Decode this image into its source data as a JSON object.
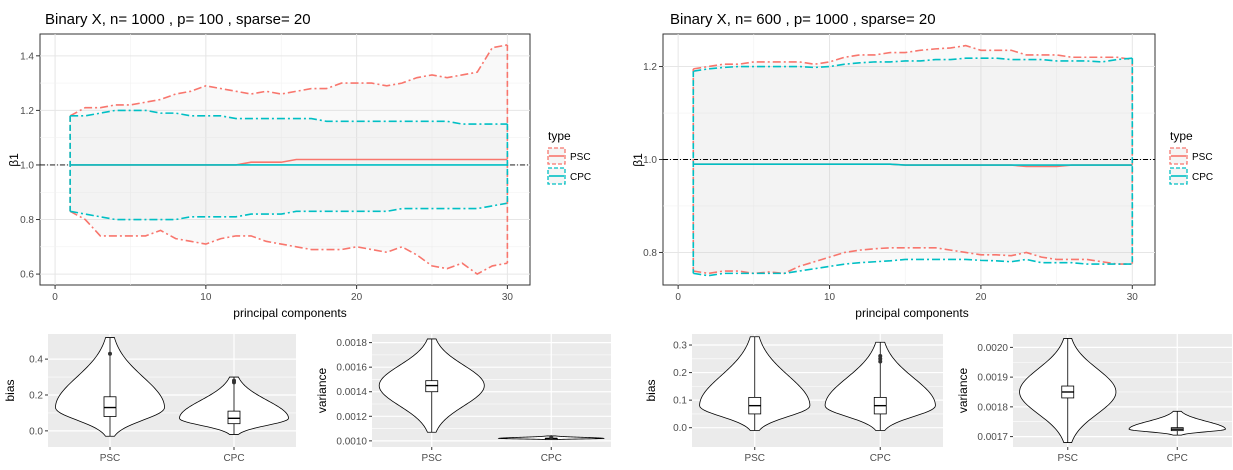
{
  "panels_top": [
    {
      "title": "Binary X, n= 1000 , p= 100 , sparse= 20",
      "xlabel": "principal components",
      "ylabel": "β1",
      "xlim": [
        -1,
        31.5
      ],
      "ylim": [
        0.56,
        1.48
      ],
      "xticks": [
        0,
        10,
        20,
        30
      ],
      "yticks": [
        0.6,
        0.8,
        1.0,
        1.2,
        1.4
      ],
      "ytick_labels": [
        "0.6",
        "0.8",
        "1.0",
        "1.2",
        "1.4"
      ],
      "reference_line": 1.0,
      "legend": {
        "title": "type",
        "items": [
          {
            "label": "PSC",
            "color": "#F8766D"
          },
          {
            "label": "CPC",
            "color": "#00BFC4"
          }
        ]
      }
    },
    {
      "title": "Binary X, n= 600 , p= 1000 , sparse= 20",
      "xlabel": "principal components",
      "ylabel": "β1",
      "xlim": [
        -1,
        31.5
      ],
      "ylim": [
        0.73,
        1.27
      ],
      "xticks": [
        0,
        10,
        20,
        30
      ],
      "yticks": [
        0.8,
        1.0,
        1.2
      ],
      "ytick_labels": [
        "0.8",
        "1.0",
        "1.2"
      ],
      "reference_line": 1.0,
      "legend": {
        "title": "type",
        "items": [
          {
            "label": "PSC",
            "color": "#F8766D"
          },
          {
            "label": "CPC",
            "color": "#00BFC4"
          }
        ]
      }
    }
  ],
  "panels_bottom": [
    {
      "ylabel": "bias",
      "categories": [
        "PSC",
        "CPC"
      ],
      "ylim": [
        -0.09,
        0.54
      ],
      "yticks": [
        0.0,
        0.2,
        0.4
      ],
      "ytick_labels": [
        "0.0",
        "0.2",
        "0.4"
      ]
    },
    {
      "ylabel": "variance",
      "categories": [
        "PSC",
        "CPC"
      ],
      "ylim": [
        0.00095,
        0.00187
      ],
      "yticks": [
        0.001,
        0.0012,
        0.0014,
        0.0016,
        0.0018
      ],
      "ytick_labels": [
        "0.0010",
        "0.0012",
        "0.0014",
        "0.0016",
        "0.0018"
      ]
    },
    {
      "ylabel": "bias",
      "categories": [
        "PSC",
        "CPC"
      ],
      "ylim": [
        -0.07,
        0.34
      ],
      "yticks": [
        0.0,
        0.1,
        0.2,
        0.3
      ],
      "ytick_labels": [
        "0.0",
        "0.1",
        "0.2",
        "0.3"
      ]
    },
    {
      "ylabel": "variance",
      "categories": [
        "PSC",
        "CPC"
      ],
      "ylim": [
        0.001665,
        0.002045
      ],
      "yticks": [
        0.0017,
        0.0018,
        0.0019,
        0.002
      ],
      "ytick_labels": [
        "0.0017",
        "0.0018",
        "0.0019",
        "0.0020"
      ]
    }
  ],
  "chart_data": [
    {
      "type": "line",
      "title": "Binary X, n= 1000 , p= 100 , sparse= 20",
      "xlabel": "principal components",
      "ylabel": "β1",
      "x": [
        1,
        2,
        3,
        4,
        5,
        6,
        7,
        8,
        9,
        10,
        11,
        12,
        13,
        14,
        15,
        16,
        17,
        18,
        19,
        20,
        21,
        22,
        23,
        24,
        25,
        26,
        27,
        28,
        29,
        30
      ],
      "series": [
        {
          "name": "PSC",
          "stat": "upper",
          "values": [
            1.18,
            1.21,
            1.21,
            1.22,
            1.22,
            1.23,
            1.24,
            1.26,
            1.27,
            1.29,
            1.28,
            1.27,
            1.26,
            1.27,
            1.26,
            1.27,
            1.28,
            1.28,
            1.3,
            1.3,
            1.3,
            1.29,
            1.3,
            1.32,
            1.33,
            1.32,
            1.33,
            1.34,
            1.43,
            1.44
          ]
        },
        {
          "name": "PSC",
          "stat": "mean",
          "values": [
            1.0,
            1.0,
            1.0,
            1.0,
            1.0,
            1.0,
            1.0,
            1.0,
            1.0,
            1.0,
            1.0,
            1.0,
            1.01,
            1.01,
            1.01,
            1.02,
            1.02,
            1.02,
            1.02,
            1.02,
            1.02,
            1.02,
            1.02,
            1.02,
            1.02,
            1.02,
            1.02,
            1.02,
            1.02,
            1.02
          ]
        },
        {
          "name": "PSC",
          "stat": "lower",
          "values": [
            0.83,
            0.8,
            0.74,
            0.74,
            0.74,
            0.74,
            0.76,
            0.73,
            0.72,
            0.71,
            0.73,
            0.74,
            0.74,
            0.72,
            0.71,
            0.7,
            0.69,
            0.69,
            0.69,
            0.7,
            0.69,
            0.68,
            0.7,
            0.67,
            0.63,
            0.62,
            0.64,
            0.6,
            0.63,
            0.64
          ]
        },
        {
          "name": "CPC",
          "stat": "upper",
          "values": [
            1.18,
            1.18,
            1.19,
            1.2,
            1.2,
            1.2,
            1.19,
            1.19,
            1.18,
            1.18,
            1.18,
            1.17,
            1.17,
            1.17,
            1.17,
            1.17,
            1.17,
            1.16,
            1.16,
            1.16,
            1.16,
            1.16,
            1.16,
            1.16,
            1.16,
            1.16,
            1.15,
            1.15,
            1.15,
            1.15
          ]
        },
        {
          "name": "CPC",
          "stat": "mean",
          "values": [
            1.0,
            1.0,
            1.0,
            1.0,
            1.0,
            1.0,
            1.0,
            1.0,
            1.0,
            1.0,
            1.0,
            1.0,
            1.0,
            1.0,
            1.0,
            1.0,
            1.0,
            1.0,
            1.0,
            1.0,
            1.0,
            1.0,
            1.0,
            1.0,
            1.0,
            1.0,
            1.0,
            1.0,
            1.0,
            1.0
          ]
        },
        {
          "name": "CPC",
          "stat": "lower",
          "values": [
            0.83,
            0.82,
            0.81,
            0.8,
            0.8,
            0.8,
            0.8,
            0.8,
            0.81,
            0.81,
            0.81,
            0.81,
            0.82,
            0.82,
            0.82,
            0.83,
            0.83,
            0.83,
            0.83,
            0.83,
            0.83,
            0.83,
            0.84,
            0.84,
            0.84,
            0.84,
            0.84,
            0.84,
            0.85,
            0.86
          ]
        }
      ],
      "legend_title": "type",
      "legend": [
        "PSC",
        "CPC"
      ],
      "colors": {
        "PSC": "#F8766D",
        "CPC": "#00BFC4"
      },
      "ylim": [
        0.56,
        1.48
      ],
      "grid": true,
      "legend_position": "right"
    },
    {
      "type": "line",
      "title": "Binary X, n= 600 , p= 1000 , sparse= 20",
      "xlabel": "principal components",
      "ylabel": "β1",
      "x": [
        1,
        2,
        3,
        4,
        5,
        6,
        7,
        8,
        9,
        10,
        11,
        12,
        13,
        14,
        15,
        16,
        17,
        18,
        19,
        20,
        21,
        22,
        23,
        24,
        25,
        26,
        27,
        28,
        29,
        30
      ],
      "series": [
        {
          "name": "PSC",
          "stat": "upper",
          "values": [
            1.195,
            1.2,
            1.205,
            1.205,
            1.21,
            1.21,
            1.21,
            1.21,
            1.205,
            1.21,
            1.22,
            1.225,
            1.225,
            1.23,
            1.23,
            1.235,
            1.238,
            1.24,
            1.245,
            1.235,
            1.235,
            1.235,
            1.225,
            1.225,
            1.225,
            1.22,
            1.22,
            1.22,
            1.22,
            1.215
          ]
        },
        {
          "name": "PSC",
          "stat": "mean",
          "values": [
            0.99,
            0.99,
            0.99,
            0.99,
            0.99,
            0.99,
            0.99,
            0.99,
            0.99,
            0.99,
            0.99,
            0.99,
            0.99,
            0.99,
            0.988,
            0.988,
            0.988,
            0.988,
            0.988,
            0.988,
            0.988,
            0.988,
            0.985,
            0.985,
            0.985,
            0.988,
            0.988,
            0.988,
            0.988,
            0.988
          ]
        },
        {
          "name": "PSC",
          "stat": "lower",
          "values": [
            0.76,
            0.755,
            0.76,
            0.76,
            0.755,
            0.758,
            0.755,
            0.77,
            0.78,
            0.79,
            0.8,
            0.805,
            0.808,
            0.81,
            0.81,
            0.81,
            0.81,
            0.805,
            0.8,
            0.795,
            0.795,
            0.793,
            0.8,
            0.79,
            0.785,
            0.785,
            0.785,
            0.78,
            0.775,
            0.775
          ]
        },
        {
          "name": "CPC",
          "stat": "upper",
          "values": [
            1.19,
            1.195,
            1.198,
            1.2,
            1.2,
            1.2,
            1.2,
            1.2,
            1.198,
            1.2,
            1.205,
            1.208,
            1.21,
            1.21,
            1.212,
            1.212,
            1.215,
            1.215,
            1.218,
            1.218,
            1.218,
            1.215,
            1.215,
            1.215,
            1.212,
            1.212,
            1.212,
            1.21,
            1.215,
            1.218
          ]
        },
        {
          "name": "CPC",
          "stat": "mean",
          "values": [
            0.99,
            0.99,
            0.99,
            0.99,
            0.99,
            0.99,
            0.99,
            0.99,
            0.99,
            0.99,
            0.99,
            0.99,
            0.99,
            0.99,
            0.988,
            0.988,
            0.988,
            0.988,
            0.988,
            0.988,
            0.988,
            0.988,
            0.988,
            0.988,
            0.988,
            0.988,
            0.988,
            0.988,
            0.988,
            0.988
          ]
        },
        {
          "name": "CPC",
          "stat": "lower",
          "values": [
            0.755,
            0.75,
            0.755,
            0.755,
            0.755,
            0.755,
            0.755,
            0.76,
            0.765,
            0.77,
            0.775,
            0.778,
            0.78,
            0.782,
            0.785,
            0.785,
            0.785,
            0.785,
            0.785,
            0.783,
            0.782,
            0.78,
            0.785,
            0.778,
            0.778,
            0.778,
            0.775,
            0.775,
            0.775,
            0.775
          ]
        }
      ],
      "legend_title": "type",
      "legend": [
        "PSC",
        "CPC"
      ],
      "colors": {
        "PSC": "#F8766D",
        "CPC": "#00BFC4"
      },
      "ylim": [
        0.73,
        1.27
      ],
      "grid": true,
      "legend_position": "right"
    },
    {
      "type": "violin",
      "ylabel": "bias",
      "categories": [
        "PSC",
        "CPC"
      ],
      "distributions": [
        {
          "name": "PSC",
          "min": -0.03,
          "q1": 0.08,
          "median": 0.13,
          "q3": 0.19,
          "max": 0.52,
          "outliers": [
            0.43
          ]
        },
        {
          "name": "CPC",
          "min": -0.02,
          "q1": 0.04,
          "median": 0.07,
          "q3": 0.11,
          "max": 0.3,
          "outliers": [
            0.27,
            0.28
          ]
        }
      ]
    },
    {
      "type": "violin",
      "ylabel": "variance",
      "categories": [
        "PSC",
        "CPC"
      ],
      "distributions": [
        {
          "name": "PSC",
          "min": 0.00107,
          "q1": 0.0014,
          "median": 0.00145,
          "q3": 0.00149,
          "max": 0.00183,
          "outliers": []
        },
        {
          "name": "CPC",
          "min": 0.00101,
          "q1": 0.00101,
          "median": 0.00102,
          "q3": 0.00102,
          "max": 0.00104,
          "outliers": [
            0.00103
          ]
        }
      ]
    },
    {
      "type": "violin",
      "ylabel": "bias",
      "categories": [
        "PSC",
        "CPC"
      ],
      "distributions": [
        {
          "name": "PSC",
          "min": -0.01,
          "q1": 0.05,
          "median": 0.08,
          "q3": 0.11,
          "max": 0.33,
          "outliers": []
        },
        {
          "name": "CPC",
          "min": -0.01,
          "q1": 0.05,
          "median": 0.08,
          "q3": 0.11,
          "max": 0.31,
          "outliers": [
            0.24,
            0.25,
            0.26
          ]
        }
      ]
    },
    {
      "type": "violin",
      "ylabel": "variance",
      "categories": [
        "PSC",
        "CPC"
      ],
      "distributions": [
        {
          "name": "PSC",
          "min": 0.00168,
          "q1": 0.00183,
          "median": 0.00185,
          "q3": 0.00187,
          "max": 0.00203,
          "outliers": []
        },
        {
          "name": "CPC",
          "min": 0.001705,
          "q1": 0.00172,
          "median": 0.001725,
          "q3": 0.00173,
          "max": 0.001785,
          "outliers": []
        }
      ]
    }
  ]
}
